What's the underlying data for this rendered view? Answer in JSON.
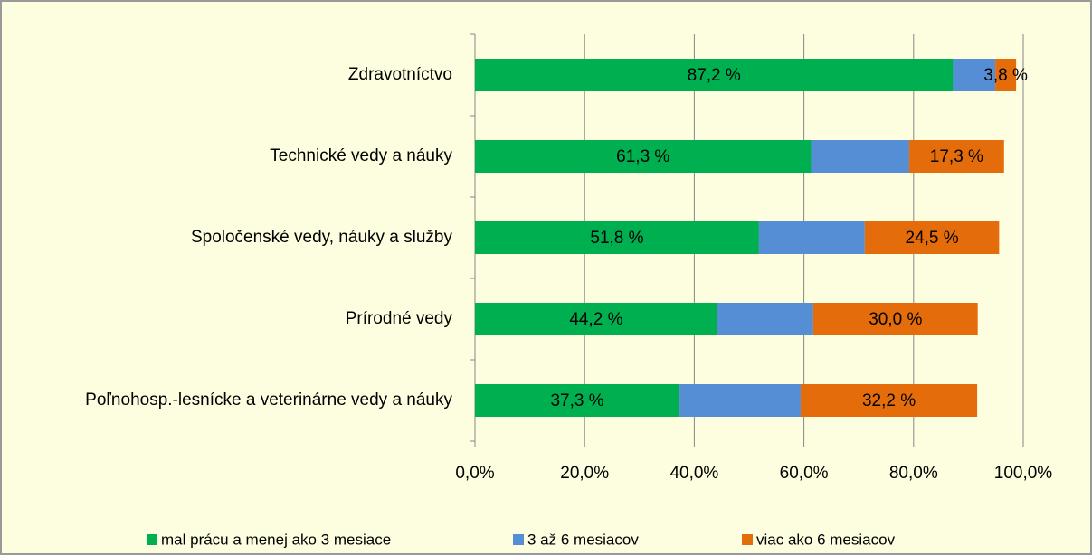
{
  "chart_data": {
    "type": "stacked-bar-horizontal",
    "categories": [
      "Zdravotníctvo",
      "Technické vedy a náuky",
      "Spoločenské vedy, náuky a služby",
      "Prírodné vedy",
      "Poľnohosp.-lesnícke a veterinárne vedy a náuky"
    ],
    "series": [
      {
        "name": "mal prácu a menej ako 3 mesiace",
        "color": "#00b050",
        "values": [
          87.2,
          61.3,
          51.8,
          44.2,
          37.3
        ],
        "value_labels": [
          "87,2 %",
          "61,3 %",
          "51,8 %",
          "44,2 %",
          "37,3 %"
        ]
      },
      {
        "name": "3 až 6 mesiacov",
        "color": "#558ed5",
        "values": [
          7.7,
          17.9,
          19.3,
          17.5,
          22.1
        ]
      },
      {
        "name": "viac ako 6 mesiacov",
        "color": "#e46c0a",
        "values": [
          3.8,
          17.3,
          24.5,
          30.0,
          32.2
        ],
        "value_labels": [
          "3,8 %",
          "17,3 %",
          "24,5 %",
          "30,0 %",
          "32,2 %"
        ]
      }
    ],
    "xlim": [
      0,
      100
    ],
    "xticks": [
      {
        "value": 0,
        "label": "0,0%"
      },
      {
        "value": 20,
        "label": "20,0%"
      },
      {
        "value": 40,
        "label": "40,0%"
      },
      {
        "value": 60,
        "label": "60,0%"
      },
      {
        "value": 80,
        "label": "80,0%"
      },
      {
        "value": 100,
        "label": "100,0%"
      }
    ],
    "grid": true,
    "legend": "bottom"
  }
}
